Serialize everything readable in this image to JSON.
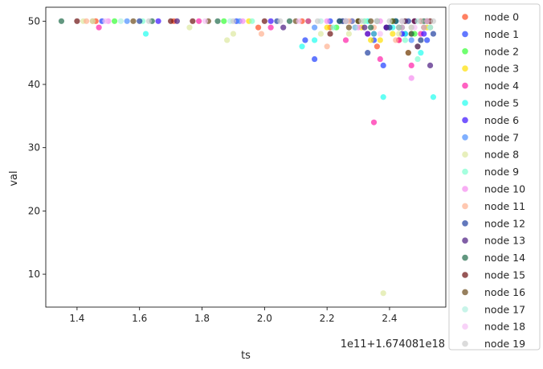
{
  "chart_data": {
    "type": "scatter",
    "xlabel": "ts",
    "ylabel": "val",
    "x_offset_label": "1e11+1.674081e18",
    "xlim": [
      1.3,
      2.58
    ],
    "ylim": [
      4.8,
      52.2
    ],
    "x_ticks": [
      "1.4",
      "1.6",
      "1.8",
      "2.0",
      "2.2",
      "2.4"
    ],
    "x_tick_values": [
      1.4,
      1.6,
      1.8,
      2.0,
      2.2,
      2.4
    ],
    "y_ticks": [
      "10",
      "20",
      "30",
      "40",
      "50"
    ],
    "y_tick_values": [
      10,
      20,
      30,
      40,
      50
    ],
    "grid": false,
    "legend_position": "right-outside",
    "series": [
      {
        "name": "node 0",
        "color": "#ff4a1f",
        "x": [
          1.46,
          1.71,
          1.98,
          2.12,
          2.21,
          2.28,
          2.33,
          2.36,
          2.4,
          2.43,
          2.47,
          2.5,
          2.53
        ],
        "y": [
          50,
          50,
          49,
          50,
          49,
          50,
          48,
          46,
          49,
          47,
          48,
          50,
          49
        ]
      },
      {
        "name": "node 1",
        "color": "#1f3fff",
        "x": [
          1.48,
          1.91,
          2.13,
          2.16,
          2.21,
          2.29,
          2.35,
          2.38,
          2.42,
          2.45,
          2.49,
          2.52
        ],
        "y": [
          50,
          50,
          47,
          44,
          50,
          49,
          47,
          43,
          50,
          48,
          46,
          47
        ]
      },
      {
        "name": "node 2",
        "color": "#33ff33",
        "x": [
          1.52,
          1.87,
          2.14,
          2.23,
          2.3,
          2.35,
          2.41,
          2.44,
          2.48,
          2.52
        ],
        "y": [
          50,
          50,
          50,
          49,
          50,
          48,
          50,
          49,
          48,
          50
        ]
      },
      {
        "name": "node 3",
        "color": "#ffe000",
        "x": [
          1.45,
          1.95,
          2.2,
          2.31,
          2.34,
          2.37,
          2.41,
          2.45,
          2.49,
          2.52
        ],
        "y": [
          50,
          50,
          49,
          49,
          47,
          47,
          48,
          50,
          46,
          49
        ]
      },
      {
        "name": "node 4",
        "color": "#ff1fa8",
        "x": [
          1.47,
          1.79,
          2.02,
          2.14,
          2.26,
          2.35,
          2.37,
          2.39,
          2.43,
          2.47,
          2.5
        ],
        "y": [
          49,
          50,
          49,
          50,
          47,
          34,
          44,
          49,
          47,
          43,
          48
        ]
      },
      {
        "name": "node 5",
        "color": "#1ffff0",
        "x": [
          1.62,
          2.12,
          2.16,
          2.25,
          2.33,
          2.38,
          2.41,
          2.45,
          2.5,
          2.54
        ],
        "y": [
          48,
          46,
          47,
          50,
          50,
          38,
          49,
          48,
          45,
          38
        ]
      },
      {
        "name": "node 6",
        "color": "#3a10ff",
        "x": [
          1.66,
          2.02,
          2.24,
          2.33,
          2.39,
          2.44,
          2.48,
          2.51
        ],
        "y": [
          50,
          50,
          50,
          48,
          49,
          48,
          50,
          48
        ]
      },
      {
        "name": "node 7",
        "color": "#4a8fff",
        "x": [
          1.56,
          1.92,
          2.16,
          2.28,
          2.35,
          2.42,
          2.47,
          2.51
        ],
        "y": [
          50,
          50,
          49,
          50,
          48,
          50,
          47,
          49
        ]
      },
      {
        "name": "node 8",
        "color": "#dde8a0",
        "x": [
          1.42,
          1.76,
          1.88,
          1.9,
          2.18,
          2.27,
          2.32,
          2.38,
          2.43,
          2.47,
          2.5
        ],
        "y": [
          50,
          49,
          47,
          48,
          48,
          48,
          50,
          7,
          48,
          49,
          47
        ]
      },
      {
        "name": "node 9",
        "color": "#7fffd0",
        "x": [
          1.61,
          1.96,
          2.22,
          2.32,
          2.4,
          2.45,
          2.49,
          2.53
        ],
        "y": [
          50,
          50,
          49,
          50,
          49,
          47,
          44,
          49
        ]
      },
      {
        "name": "node 10",
        "color": "#f58cf0",
        "x": [
          1.5,
          1.93,
          2.2,
          2.3,
          2.37,
          2.44,
          2.47,
          2.52
        ],
        "y": [
          50,
          50,
          50,
          49,
          50,
          49,
          41,
          50
        ]
      },
      {
        "name": "node 11",
        "color": "#ffb090",
        "x": [
          1.43,
          1.99,
          2.2,
          2.27,
          2.35,
          2.42,
          2.46,
          2.51
        ],
        "y": [
          50,
          48,
          46,
          50,
          49,
          47,
          45,
          49
        ]
      },
      {
        "name": "node 12",
        "color": "#1f3fa0",
        "x": [
          1.6,
          2.04,
          2.26,
          2.33,
          2.4,
          2.46,
          2.5,
          2.54
        ],
        "y": [
          50,
          50,
          50,
          45,
          49,
          50,
          47,
          48
        ]
      },
      {
        "name": "node 13",
        "color": "#4a1a80",
        "x": [
          1.72,
          2.06,
          2.25,
          2.32,
          2.39,
          2.45,
          2.49,
          2.53
        ],
        "y": [
          50,
          49,
          50,
          49,
          49,
          50,
          46,
          43
        ]
      },
      {
        "name": "node 14",
        "color": "#1f6b4a",
        "x": [
          1.35,
          1.64,
          1.85,
          2.08,
          2.24,
          2.34,
          2.42,
          2.47,
          2.51
        ],
        "y": [
          50,
          50,
          50,
          50,
          50,
          49,
          50,
          48,
          50
        ]
      },
      {
        "name": "node 15",
        "color": "#6b1010",
        "x": [
          1.4,
          1.7,
          1.77,
          2.0,
          2.21,
          2.3,
          2.36,
          2.43,
          2.48,
          2.53
        ],
        "y": [
          50,
          50,
          50,
          50,
          48,
          50,
          50,
          49,
          50,
          50
        ]
      },
      {
        "name": "node 16",
        "color": "#6b4a1a",
        "x": [
          1.58,
          1.82,
          2.1,
          2.27,
          2.34,
          2.41,
          2.46,
          2.52
        ],
        "y": [
          50,
          50,
          50,
          49,
          50,
          50,
          45,
          50
        ]
      },
      {
        "name": "node 17",
        "color": "#b0f0e0",
        "x": [
          1.54,
          1.89,
          2.18,
          2.29,
          2.36,
          2.43,
          2.49,
          2.53
        ],
        "y": [
          50,
          50,
          50,
          49,
          50,
          49,
          50,
          49
        ]
      },
      {
        "name": "node 18",
        "color": "#f5c0f5",
        "x": [
          1.49,
          1.81,
          2.11,
          2.26,
          2.37,
          2.44,
          2.48,
          2.52
        ],
        "y": [
          50,
          50,
          50,
          50,
          48,
          50,
          49,
          50
        ]
      },
      {
        "name": "node 19",
        "color": "#cccccc",
        "x": [
          1.45,
          1.63,
          1.9,
          2.05,
          2.17,
          2.26,
          2.31,
          2.36,
          2.4,
          2.44,
          2.47,
          2.5,
          2.54
        ],
        "y": [
          50,
          50,
          50,
          50,
          50,
          50,
          50,
          50,
          50,
          50,
          49,
          50,
          50
        ]
      }
    ]
  }
}
